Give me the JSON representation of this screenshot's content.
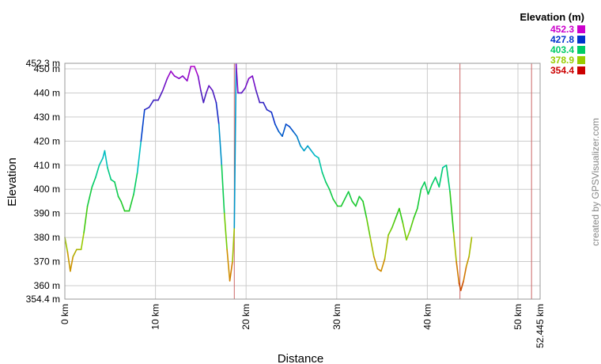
{
  "chart_data": {
    "type": "line",
    "title": "",
    "xlabel": "Distance",
    "ylabel": "Elevation",
    "xlim": [
      0,
      52.445
    ],
    "ylim": [
      354.4,
      452.3
    ],
    "x_ticks": [
      "0 km",
      "10 km",
      "20 km",
      "30 km",
      "40 km",
      "50 km",
      "52.445 km"
    ],
    "y_ticks": [
      "354.4 m",
      "360 m",
      "370 m",
      "380 m",
      "390 m",
      "400 m",
      "410 m",
      "420 m",
      "430 m",
      "440 m",
      "450 m",
      "452.3 m"
    ],
    "grid": true,
    "legend_placement": "top-right",
    "legend": {
      "title": "Elevation (m)",
      "entries": [
        {
          "label": "452.3",
          "color": "#cc00cc"
        },
        {
          "label": "427.8",
          "color": "#0033cc"
        },
        {
          "label": "403.4",
          "color": "#00cc66"
        },
        {
          "label": "378.9",
          "color": "#99cc00"
        },
        {
          "label": "354.4",
          "color": "#cc0000"
        }
      ]
    },
    "vertical_markers": [
      18.7,
      43.6,
      51.5
    ],
    "marker_color": "#cc6666",
    "series": [
      {
        "points": [
          [
            0.0,
            380
          ],
          [
            0.3,
            374
          ],
          [
            0.6,
            366
          ],
          [
            0.9,
            372
          ],
          [
            1.3,
            375
          ],
          [
            1.8,
            375
          ],
          [
            2.1,
            382
          ],
          [
            2.5,
            393
          ],
          [
            3.0,
            401
          ],
          [
            3.4,
            405
          ],
          [
            3.8,
            410
          ],
          [
            4.2,
            413
          ],
          [
            4.4,
            416
          ],
          [
            4.7,
            409
          ],
          [
            5.1,
            404
          ],
          [
            5.5,
            403
          ],
          [
            5.9,
            397
          ],
          [
            6.2,
            395
          ],
          [
            6.6,
            391
          ],
          [
            7.1,
            391
          ],
          [
            7.6,
            398
          ],
          [
            8.0,
            407
          ],
          [
            8.4,
            420
          ],
          [
            8.8,
            433
          ],
          [
            9.3,
            434
          ],
          [
            9.8,
            437
          ],
          [
            10.3,
            437
          ],
          [
            10.8,
            441
          ],
          [
            11.3,
            446
          ],
          [
            11.7,
            449
          ],
          [
            12.1,
            447
          ],
          [
            12.6,
            446
          ],
          [
            13.0,
            447
          ],
          [
            13.5,
            445
          ],
          [
            13.9,
            451
          ],
          [
            14.3,
            451
          ],
          [
            14.7,
            447
          ],
          [
            15.0,
            441
          ],
          [
            15.3,
            436
          ],
          [
            15.6,
            440
          ],
          [
            15.9,
            443
          ],
          [
            16.3,
            441
          ],
          [
            16.7,
            436
          ],
          [
            17.0,
            427
          ],
          [
            17.3,
            410
          ],
          [
            17.6,
            390
          ],
          [
            17.9,
            375
          ],
          [
            18.2,
            362
          ],
          [
            18.5,
            370
          ],
          [
            18.7,
            384
          ],
          [
            18.9,
            452
          ],
          [
            19.1,
            440
          ],
          [
            19.5,
            440
          ],
          [
            19.9,
            442
          ],
          [
            20.3,
            446
          ],
          [
            20.7,
            447
          ],
          [
            21.1,
            441
          ],
          [
            21.5,
            436
          ],
          [
            21.9,
            436
          ],
          [
            22.3,
            433
          ],
          [
            22.8,
            432
          ],
          [
            23.2,
            427
          ],
          [
            23.6,
            424
          ],
          [
            24.0,
            422
          ],
          [
            24.4,
            427
          ],
          [
            24.8,
            426
          ],
          [
            25.2,
            424
          ],
          [
            25.6,
            422
          ],
          [
            26.0,
            418
          ],
          [
            26.4,
            416
          ],
          [
            26.8,
            418
          ],
          [
            27.2,
            416
          ],
          [
            27.6,
            414
          ],
          [
            28.0,
            413
          ],
          [
            28.4,
            407
          ],
          [
            28.8,
            403
          ],
          [
            29.2,
            400
          ],
          [
            29.6,
            396
          ],
          [
            30.1,
            393
          ],
          [
            30.5,
            393
          ],
          [
            30.9,
            396
          ],
          [
            31.3,
            399
          ],
          [
            31.7,
            395
          ],
          [
            32.1,
            393
          ],
          [
            32.5,
            397
          ],
          [
            32.9,
            395
          ],
          [
            33.3,
            388
          ],
          [
            33.7,
            380
          ],
          [
            34.1,
            372
          ],
          [
            34.5,
            367
          ],
          [
            34.9,
            366
          ],
          [
            35.3,
            371
          ],
          [
            35.7,
            381
          ],
          [
            36.1,
            384
          ],
          [
            36.5,
            388
          ],
          [
            36.9,
            392
          ],
          [
            37.3,
            386
          ],
          [
            37.7,
            379
          ],
          [
            38.1,
            383
          ],
          [
            38.5,
            388
          ],
          [
            38.9,
            392
          ],
          [
            39.3,
            400
          ],
          [
            39.7,
            403
          ],
          [
            40.1,
            398
          ],
          [
            40.5,
            402
          ],
          [
            40.9,
            405
          ],
          [
            41.3,
            401
          ],
          [
            41.7,
            409
          ],
          [
            42.1,
            410
          ],
          [
            42.5,
            399
          ],
          [
            42.9,
            382
          ],
          [
            43.2,
            370
          ],
          [
            43.5,
            361
          ],
          [
            43.7,
            358
          ],
          [
            44.0,
            362
          ],
          [
            44.3,
            368
          ],
          [
            44.6,
            372
          ],
          [
            44.9,
            380
          ]
        ]
      }
    ]
  },
  "credit_text": "created by GPSVisualizer.com"
}
